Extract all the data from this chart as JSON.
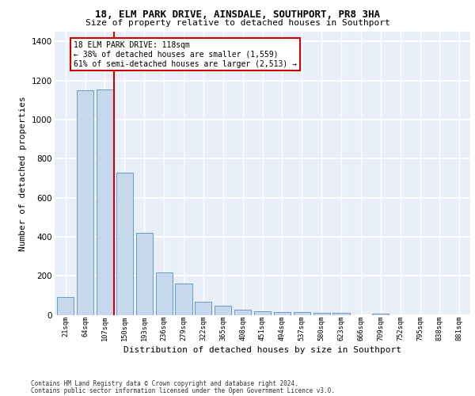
{
  "title_line1": "18, ELM PARK DRIVE, AINSDALE, SOUTHPORT, PR8 3HA",
  "title_line2": "Size of property relative to detached houses in Southport",
  "xlabel": "Distribution of detached houses by size in Southport",
  "ylabel": "Number of detached properties",
  "footer_line1": "Contains HM Land Registry data © Crown copyright and database right 2024.",
  "footer_line2": "Contains public sector information licensed under the Open Government Licence v3.0.",
  "property_label": "18 ELM PARK DRIVE: 118sqm",
  "annotation_line1": "← 38% of detached houses are smaller (1,559)",
  "annotation_line2": "61% of semi-detached houses are larger (2,513) →",
  "bar_color": "#c5d8ec",
  "bar_edge_color": "#6699cc",
  "vline_color": "#cc0000",
  "annotation_box_edgecolor": "#cc0000",
  "background_color": "#e8eff8",
  "grid_color": "#ffffff",
  "categories": [
    "21sqm",
    "64sqm",
    "107sqm",
    "150sqm",
    "193sqm",
    "236sqm",
    "279sqm",
    "322sqm",
    "365sqm",
    "408sqm",
    "451sqm",
    "494sqm",
    "537sqm",
    "580sqm",
    "623sqm",
    "666sqm",
    "709sqm",
    "752sqm",
    "795sqm",
    "838sqm",
    "881sqm"
  ],
  "values": [
    90,
    1150,
    1155,
    730,
    420,
    215,
    160,
    65,
    46,
    28,
    20,
    15,
    13,
    10,
    10,
    0,
    8,
    0,
    0,
    0,
    0
  ],
  "ylim": [
    0,
    1450
  ],
  "yticks": [
    0,
    200,
    400,
    600,
    800,
    1000,
    1200,
    1400
  ],
  "vline_x_index": 2.47
}
